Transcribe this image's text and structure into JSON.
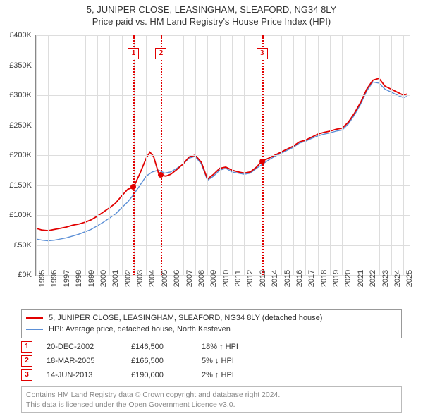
{
  "title_line1": "5, JUNIPER CLOSE, LEASINGHAM, SLEAFORD, NG34 8LY",
  "title_line2": "Price paid vs. HM Land Registry's House Price Index (HPI)",
  "chart": {
    "type": "line",
    "background_color": "#ffffff",
    "grid_color": "#dddddd",
    "axis_color": "#888888",
    "ylim": [
      0,
      400000
    ],
    "ytick_step": 50000,
    "ytick_labels": [
      "£0K",
      "£50K",
      "£100K",
      "£150K",
      "£200K",
      "£250K",
      "£300K",
      "£350K",
      "£400K"
    ],
    "xlim": [
      1995,
      2025.5
    ],
    "xtick_step": 1,
    "xtick_labels": [
      "1995",
      "1996",
      "1997",
      "1998",
      "1999",
      "2000",
      "2001",
      "2002",
      "2003",
      "2004",
      "2005",
      "2006",
      "2007",
      "2008",
      "2009",
      "2010",
      "2011",
      "2012",
      "2013",
      "2014",
      "2015",
      "2016",
      "2017",
      "2018",
      "2019",
      "2020",
      "2021",
      "2022",
      "2023",
      "2024",
      "2025"
    ],
    "label_fontsize": 11,
    "series": [
      {
        "key": "price_paid",
        "label": "5, JUNIPER CLOSE, LEASINGHAM, SLEAFORD, NG34 8LY (detached house)",
        "color": "#e10000",
        "line_width": 1.8,
        "x": [
          1995,
          1995.5,
          1996,
          1996.5,
          1997,
          1997.5,
          1998,
          1998.5,
          1999,
          1999.5,
          2000,
          2000.5,
          2001,
          2001.5,
          2002,
          2002.5,
          2002.97,
          2003.5,
          2004,
          2004.3,
          2004.6,
          2005,
          2005.21,
          2005.6,
          2006,
          2006.5,
          2007,
          2007.5,
          2008,
          2008.5,
          2009,
          2009.5,
          2010,
          2010.5,
          2011,
          2011.5,
          2012,
          2012.5,
          2013,
          2013.45,
          2014,
          2014.5,
          2015,
          2015.5,
          2016,
          2016.5,
          2017,
          2017.5,
          2018,
          2018.5,
          2019,
          2019.5,
          2020,
          2020.5,
          2021,
          2021.5,
          2022,
          2022.5,
          2023,
          2023.5,
          2024,
          2024.5,
          2025,
          2025.3
        ],
        "y": [
          78000,
          75000,
          74000,
          76000,
          78000,
          80000,
          83000,
          85000,
          88000,
          92000,
          98000,
          105000,
          112000,
          120000,
          132000,
          143000,
          146500,
          170000,
          195000,
          205000,
          198000,
          170000,
          166500,
          165000,
          168000,
          176000,
          185000,
          197000,
          200000,
          188000,
          160000,
          168000,
          178000,
          180000,
          175000,
          172000,
          170000,
          172000,
          180000,
          190000,
          195000,
          200000,
          205000,
          210000,
          215000,
          222000,
          225000,
          230000,
          235000,
          238000,
          240000,
          243000,
          245000,
          255000,
          270000,
          288000,
          310000,
          325000,
          328000,
          315000,
          310000,
          305000,
          300000,
          302000
        ]
      },
      {
        "key": "hpi",
        "label": "HPI: Average price, detached house, North Kesteven",
        "color": "#5b8fd6",
        "line_width": 1.4,
        "x": [
          1995,
          1995.5,
          1996,
          1996.5,
          1997,
          1997.5,
          1998,
          1998.5,
          1999,
          1999.5,
          2000,
          2000.5,
          2001,
          2001.5,
          2002,
          2002.5,
          2003,
          2003.5,
          2004,
          2004.5,
          2005,
          2005.5,
          2006,
          2006.5,
          2007,
          2007.5,
          2008,
          2008.5,
          2009,
          2009.5,
          2010,
          2010.5,
          2011,
          2011.5,
          2012,
          2012.5,
          2013,
          2013.5,
          2014,
          2014.5,
          2015,
          2015.5,
          2016,
          2016.5,
          2017,
          2017.5,
          2018,
          2018.5,
          2019,
          2019.5,
          2020,
          2020.5,
          2021,
          2021.5,
          2022,
          2022.5,
          2023,
          2023.5,
          2024,
          2024.5,
          2025,
          2025.3
        ],
        "y": [
          60000,
          58000,
          57000,
          58000,
          60000,
          62000,
          65000,
          68000,
          72000,
          76000,
          82000,
          88000,
          95000,
          102000,
          112000,
          122000,
          135000,
          150000,
          165000,
          172000,
          175000,
          170000,
          172000,
          178000,
          185000,
          195000,
          198000,
          185000,
          158000,
          165000,
          175000,
          178000,
          172000,
          170000,
          168000,
          170000,
          178000,
          185000,
          192000,
          198000,
          203000,
          208000,
          213000,
          220000,
          223000,
          228000,
          232000,
          235000,
          237000,
          240000,
          242000,
          252000,
          267000,
          285000,
          307000,
          322000,
          320000,
          310000,
          305000,
          300000,
          296000,
          298000
        ]
      }
    ],
    "markers": [
      {
        "n": "1",
        "x": 2002.97,
        "y": 146500,
        "color": "#e10000"
      },
      {
        "n": "2",
        "x": 2005.21,
        "y": 166500,
        "color": "#e10000"
      },
      {
        "n": "3",
        "x": 2013.45,
        "y": 190000,
        "color": "#e10000"
      }
    ],
    "marker_box_y_offset": 18
  },
  "legend": {
    "border_color": "#999999"
  },
  "events": [
    {
      "n": "1",
      "date": "20-DEC-2002",
      "price": "£146,500",
      "pct": "18% ↑ HPI",
      "color": "#e10000"
    },
    {
      "n": "2",
      "date": "18-MAR-2005",
      "price": "£166,500",
      "pct": "5% ↓ HPI",
      "color": "#e10000"
    },
    {
      "n": "3",
      "date": "14-JUN-2013",
      "price": "£190,000",
      "pct": "2% ↑ HPI",
      "color": "#e10000"
    }
  ],
  "attribution": {
    "line1": "Contains HM Land Registry data © Crown copyright and database right 2024.",
    "line2": "This data is licensed under the Open Government Licence v3.0.",
    "border_color": "#bbbbbb",
    "text_color": "#888888"
  }
}
